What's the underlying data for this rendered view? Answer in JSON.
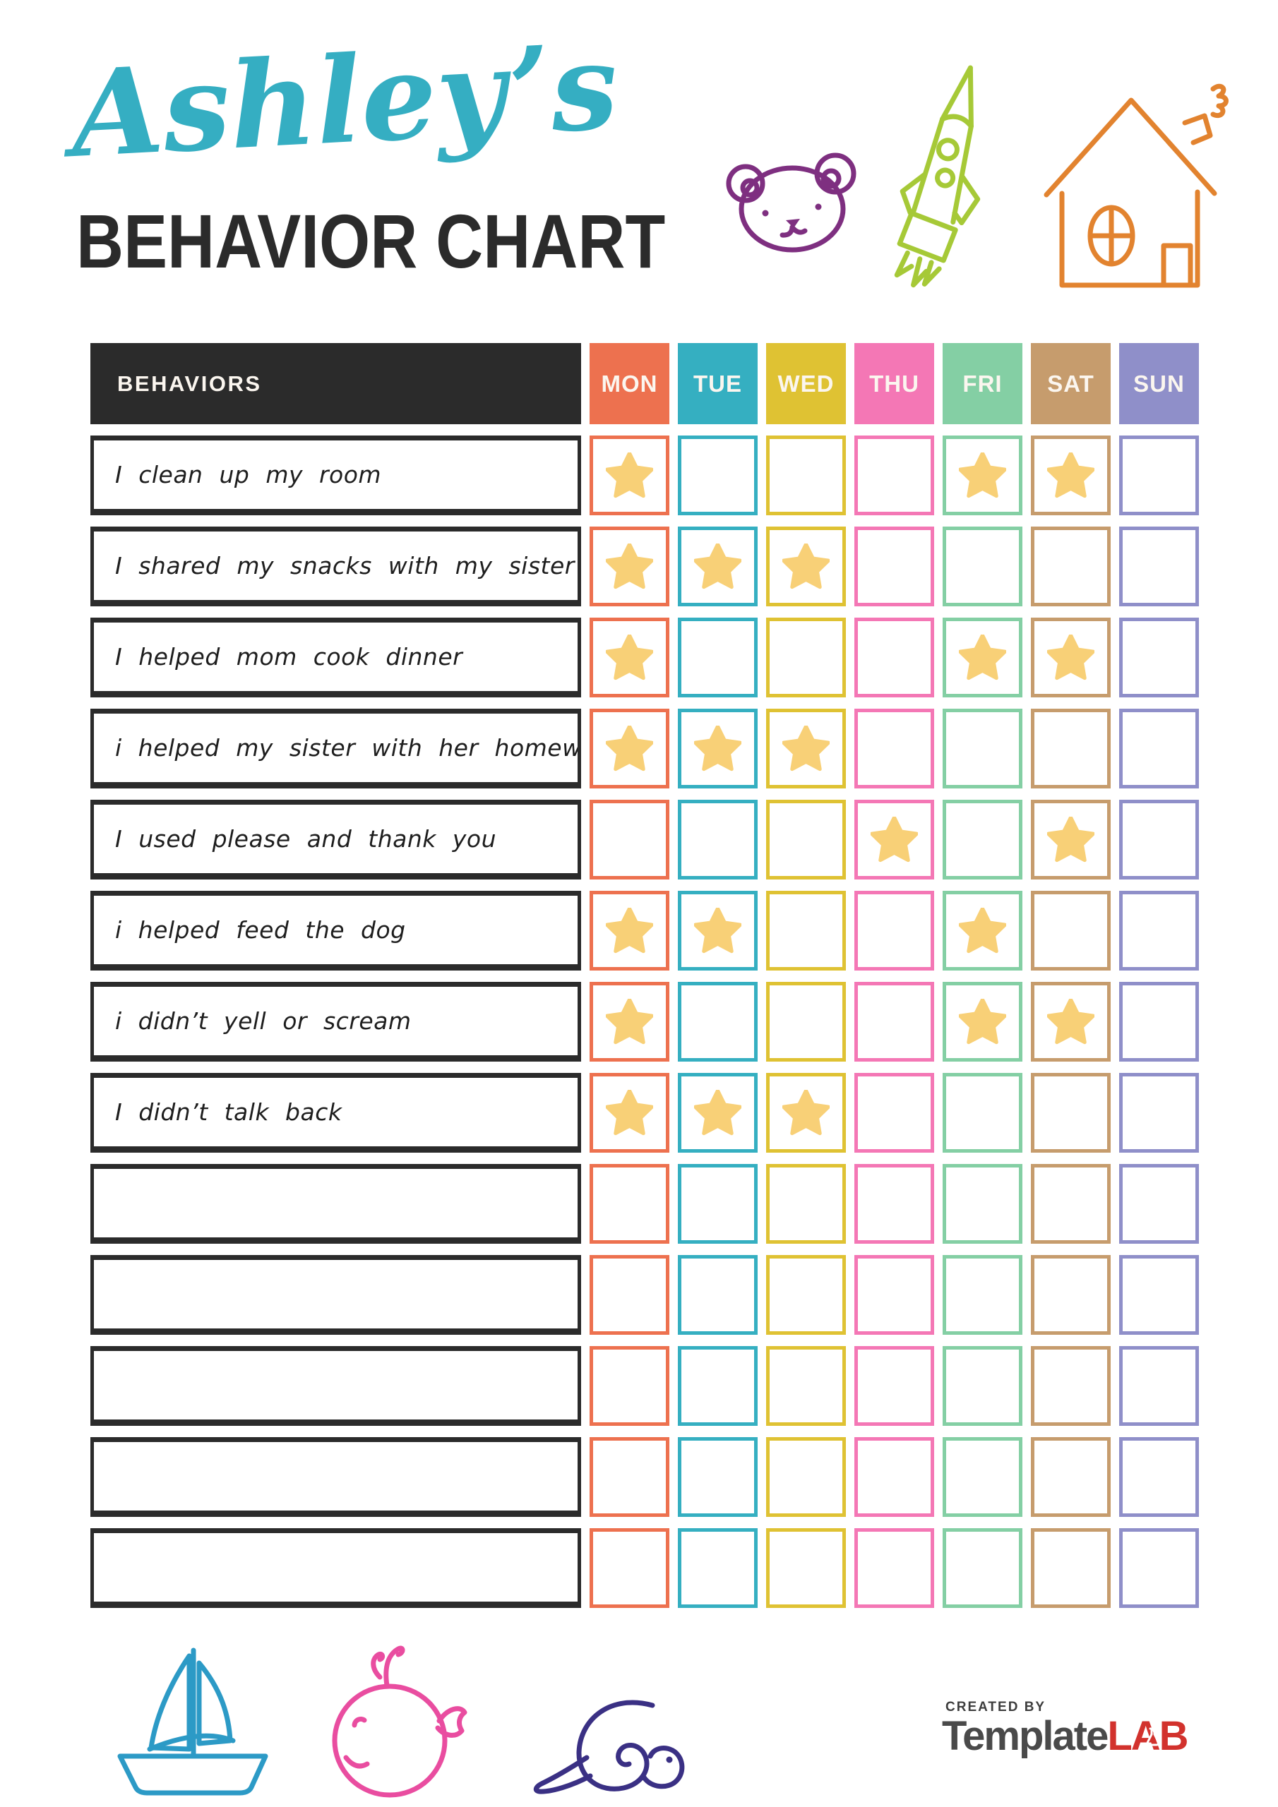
{
  "page": {
    "script_title": "Ashley’s",
    "main_title": "BEHAVIOR CHART"
  },
  "colors": {
    "script_title": "#35AEC2",
    "main_title": "#2B2B2B",
    "table_dark": "#2B2B2B",
    "star": "#F8D077",
    "label_text": "#1E1E1E"
  },
  "doodles": {
    "bear": "#7E2F80",
    "rocket": "#A6C937",
    "house": "#E2832F",
    "sailboat": "#2C9AC6",
    "whale": "#E94DA0",
    "snail": "#3A3084"
  },
  "table": {
    "behaviors_header": "BEHAVIORS",
    "days": [
      {
        "label": "MON",
        "color": "#ED714F"
      },
      {
        "label": "TUE",
        "color": "#35AFC1"
      },
      {
        "label": "WED",
        "color": "#DFC233"
      },
      {
        "label": "THU",
        "color": "#F477B5"
      },
      {
        "label": "FRI",
        "color": "#84CFA4"
      },
      {
        "label": "SAT",
        "color": "#C69C6D"
      },
      {
        "label": "SUN",
        "color": "#8F8FC9"
      }
    ],
    "rows": [
      {
        "label": "I clean up my room",
        "stars": [
          1,
          0,
          0,
          0,
          1,
          1,
          0
        ]
      },
      {
        "label": "I shared my snacks with my sister",
        "stars": [
          1,
          1,
          1,
          0,
          0,
          0,
          0
        ]
      },
      {
        "label": "I helped mom cook dinner",
        "stars": [
          1,
          0,
          0,
          0,
          1,
          1,
          0
        ]
      },
      {
        "label": "i helped my sister with her homework",
        "stars": [
          1,
          1,
          1,
          0,
          0,
          0,
          0
        ]
      },
      {
        "label": "I used please and thank you",
        "stars": [
          0,
          0,
          0,
          1,
          0,
          1,
          0
        ]
      },
      {
        "label": "i helped feed the dog",
        "stars": [
          1,
          1,
          0,
          0,
          1,
          0,
          0
        ]
      },
      {
        "label": "i didn’t yell or scream",
        "stars": [
          1,
          0,
          0,
          0,
          1,
          1,
          0
        ]
      },
      {
        "label": "I didn’t talk back",
        "stars": [
          1,
          1,
          1,
          0,
          0,
          0,
          0
        ]
      },
      {
        "label": "",
        "stars": [
          0,
          0,
          0,
          0,
          0,
          0,
          0
        ]
      },
      {
        "label": "",
        "stars": [
          0,
          0,
          0,
          0,
          0,
          0,
          0
        ]
      },
      {
        "label": "",
        "stars": [
          0,
          0,
          0,
          0,
          0,
          0,
          0
        ]
      },
      {
        "label": "",
        "stars": [
          0,
          0,
          0,
          0,
          0,
          0,
          0
        ]
      },
      {
        "label": "",
        "stars": [
          0,
          0,
          0,
          0,
          0,
          0,
          0
        ]
      }
    ]
  },
  "footer": {
    "created_by": "CREATED BY",
    "brand_gray": "Template",
    "brand_red": "LAB"
  }
}
